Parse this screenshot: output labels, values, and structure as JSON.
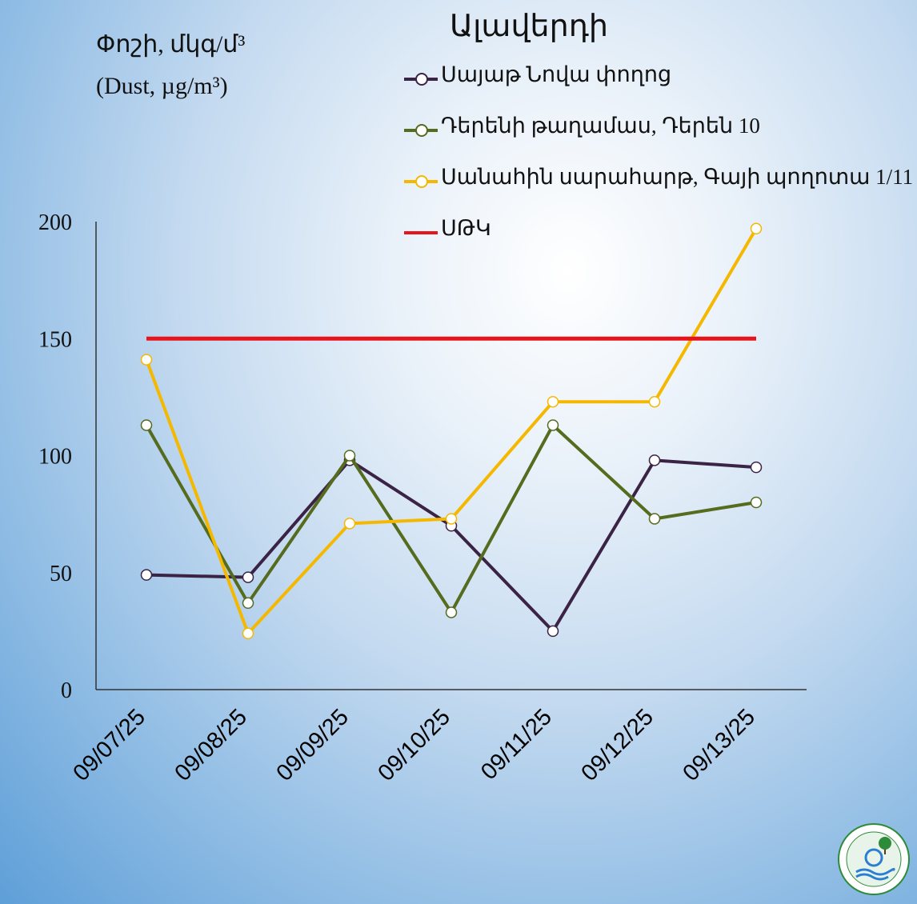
{
  "ylabel_line1": "Փոշի, մկգ/մ³",
  "ylabel_line2": "(Dust, µg/m³)",
  "title": "Ալավերդի",
  "chart_data": {
    "type": "line",
    "title": "Ալավերդի",
    "ylabel": "Փոշի, մկգ/մ³ (Dust, µg/m³)",
    "categories": [
      "09/07/25",
      "09/08/25",
      "09/09/25",
      "09/10/25",
      "09/11/25",
      "09/12/25",
      "09/13/25"
    ],
    "ylim": [
      0,
      200
    ],
    "yticks": [
      "0",
      "50",
      "100",
      "150",
      "200"
    ],
    "grid": false,
    "legend_position": "top-right",
    "series": [
      {
        "name": "Սայաթ Նովա փողոց",
        "color": "#3b2345",
        "values": [
          49,
          48,
          98,
          70,
          25,
          98,
          95
        ]
      },
      {
        "name": "Դերենի թաղամաս, Դերեն 10",
        "color": "#556b1e",
        "values": [
          113,
          37,
          100,
          33,
          113,
          73,
          80
        ]
      },
      {
        "name": "Սանահին սարահարթ, Գայի պողոտա 1/11",
        "color": "#f5b800",
        "values": [
          141,
          24,
          71,
          73,
          123,
          123,
          197
        ]
      },
      {
        "name": "ՍԹԿ",
        "color": "#e8141b",
        "values": [
          150,
          150,
          150,
          150,
          150,
          150,
          150
        ],
        "markers": false
      }
    ]
  }
}
